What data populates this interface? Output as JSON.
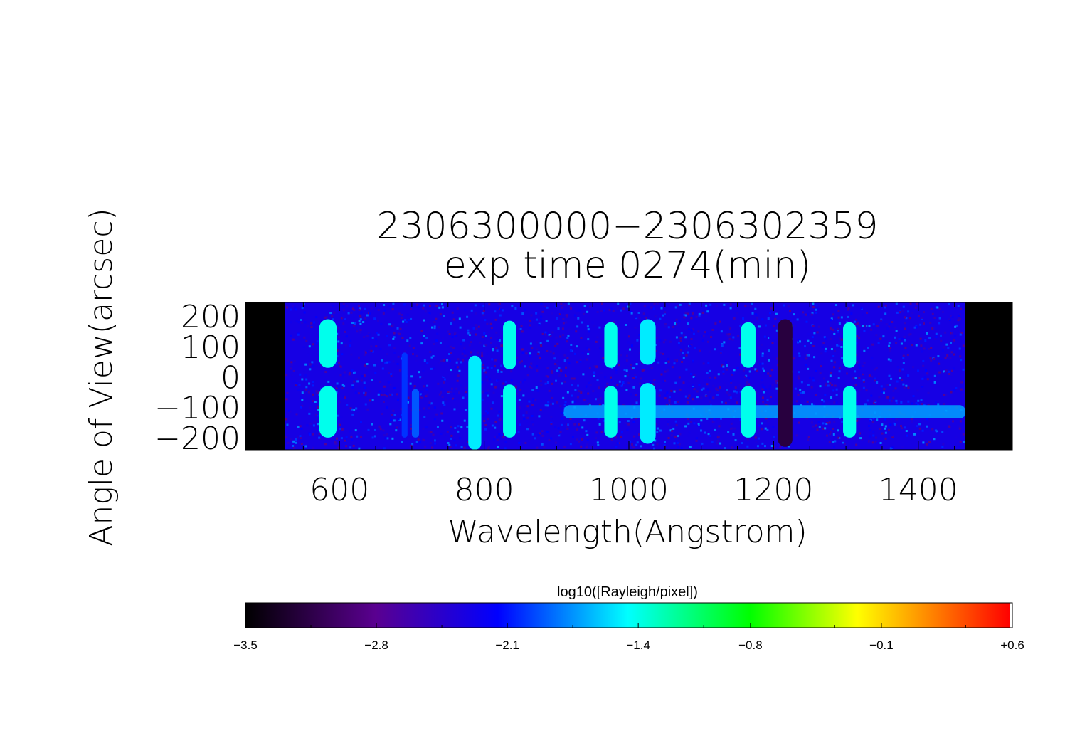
{
  "chart_data": {
    "type": "heatmap",
    "title": "2306300000−2306302359",
    "subtitle": "exp time 0274(min)",
    "xlabel": "Wavelength(Angstrom)",
    "ylabel": "Angle of View(arcsec)",
    "xlim": [
      470,
      1530
    ],
    "ylim": [
      -240,
      245
    ],
    "x_ticks": [
      "600",
      "800",
      "1000",
      "1200",
      "1400"
    ],
    "x_tick_values": [
      600,
      800,
      1000,
      1200,
      1400
    ],
    "y_ticks": [
      "200",
      "100",
      "0",
      "−100",
      "−200"
    ],
    "y_tick_values": [
      200,
      100,
      0,
      -100,
      -200
    ],
    "data_extent_x": [
      525,
      1465
    ],
    "background_level": -2.3,
    "emission_lines": [
      {
        "wavelength": 584,
        "half_width": 12,
        "y_ranges": [
          [
            30,
            190
          ],
          [
            -200,
            -30
          ]
        ],
        "level": -1.4
      },
      {
        "wavelength": 690,
        "half_width": 4,
        "y_ranges": [
          [
            -200,
            80
          ]
        ],
        "level": -2.0
      },
      {
        "wavelength": 705,
        "half_width": 5,
        "y_ranges": [
          [
            -200,
            -40
          ]
        ],
        "level": -1.9
      },
      {
        "wavelength": 787,
        "half_width": 9,
        "y_ranges": [
          [
            -240,
            70
          ]
        ],
        "level": -1.5
      },
      {
        "wavelength": 835,
        "half_width": 9,
        "y_ranges": [
          [
            25,
            185
          ],
          [
            -200,
            -25
          ]
        ],
        "level": -1.4
      },
      {
        "wavelength": 975,
        "half_width": 9,
        "y_ranges": [
          [
            30,
            180
          ],
          [
            -200,
            -30
          ]
        ],
        "level": -1.4
      },
      {
        "wavelength": 1026,
        "half_width": 11,
        "y_ranges": [
          [
            40,
            190
          ],
          [
            -220,
            -20
          ]
        ],
        "level": -1.5
      },
      {
        "wavelength": 1165,
        "half_width": 10,
        "y_ranges": [
          [
            30,
            180
          ],
          [
            -200,
            -30
          ]
        ],
        "level": -1.4
      },
      {
        "wavelength": 1305,
        "half_width": 9,
        "y_ranges": [
          [
            30,
            180
          ],
          [
            -200,
            -30
          ]
        ],
        "level": -1.4
      }
    ],
    "absorption_band": {
      "wavelength": 1216,
      "half_width": 10,
      "y_range": [
        -230,
        190
      ],
      "level": -3.2
    },
    "continuum_band": {
      "x_range": [
        910,
        1465
      ],
      "y_center": -115,
      "half_height": 22,
      "level": -1.7
    },
    "colorbar": {
      "label": "log10([Rayleigh/pixel])",
      "ticks": [
        "−3.5",
        "−2.8",
        "−2.1",
        "−1.4",
        "−0.8",
        "−0.1",
        "+0.6"
      ],
      "tick_values": [
        -3.5,
        -2.8,
        -2.1,
        -1.4,
        -0.8,
        -0.1,
        0.6
      ],
      "range": [
        -3.5,
        0.6
      ],
      "colormap": [
        "#000000",
        "#5a0090",
        "#0000ff",
        "#00ffff",
        "#00ff00",
        "#ffff00",
        "#ff0000"
      ]
    }
  }
}
